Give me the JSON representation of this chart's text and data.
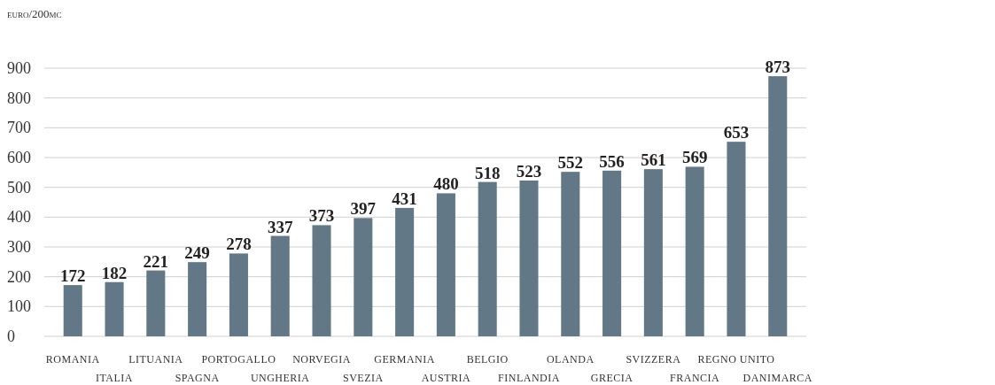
{
  "chart_data": {
    "type": "bar",
    "ylabel": "euro/200mc",
    "categories": [
      "ROMANIA",
      "ITALIA",
      "LITUANIA",
      "SPAGNA",
      "PORTOGALLO",
      "UNGHERIA",
      "NORVEGIA",
      "SVEZIA",
      "GERMANIA",
      "AUSTRIA",
      "BELGIO",
      "FINLANDIA",
      "OLANDA",
      "GRECIA",
      "SVIZZERA",
      "FRANCIA",
      "REGNO UNITO",
      "DANIMARCA"
    ],
    "values": [
      172,
      182,
      221,
      249,
      278,
      337,
      373,
      397,
      431,
      480,
      518,
      523,
      552,
      556,
      561,
      569,
      653,
      873
    ],
    "color": "#627886",
    "ylim": [
      0,
      900
    ],
    "yticks": [
      0,
      100,
      200,
      300,
      400,
      500,
      600,
      700,
      800,
      900
    ],
    "grid": "y",
    "data_labels": true
  }
}
